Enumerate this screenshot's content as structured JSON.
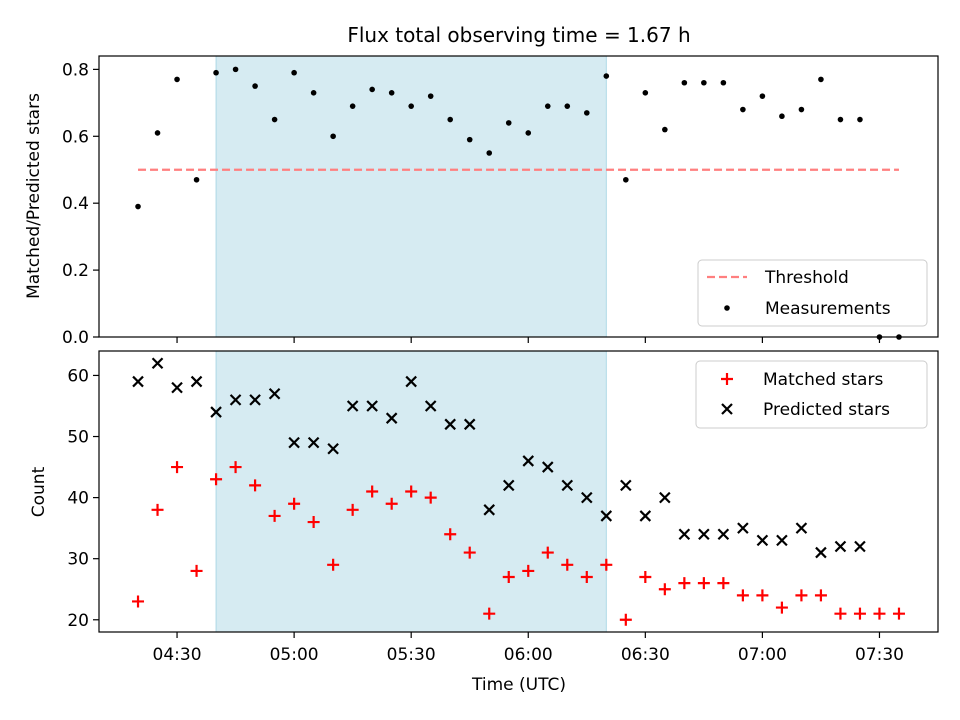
{
  "figure_title": "Flux total observing time = 1.67 h",
  "colors": {
    "threshold": "#ff7f7f",
    "measurement": "#000000",
    "matched": "#ff0000",
    "predicted": "#000000",
    "shade": "#add8e6"
  },
  "chart_data": [
    {
      "type": "scatter",
      "ylabel": "Matched/Predicted stars",
      "ylim": [
        0,
        0.84
      ],
      "yticks": [
        "0.0",
        "0.2",
        "0.4",
        "0.6",
        "0.8"
      ],
      "ytick_values": [
        0,
        0.2,
        0.4,
        0.6,
        0.8
      ],
      "shaded_span": [
        "04:40",
        "06:20"
      ],
      "legend_position": "lower-right",
      "threshold": {
        "name": "Threshold",
        "value": 0.5,
        "x_range": [
          "04:20",
          "07:35"
        ]
      },
      "series": [
        {
          "name": "Measurements",
          "marker": "dot",
          "x": [
            "04:20",
            "04:25",
            "04:30",
            "04:35",
            "04:40",
            "04:45",
            "04:50",
            "04:55",
            "05:00",
            "05:05",
            "05:10",
            "05:15",
            "05:20",
            "05:25",
            "05:30",
            "05:35",
            "05:40",
            "05:45",
            "05:50",
            "05:55",
            "06:00",
            "06:05",
            "06:10",
            "06:15",
            "06:20",
            "06:25",
            "06:30",
            "06:35",
            "06:40",
            "06:45",
            "06:50",
            "06:55",
            "07:00",
            "07:05",
            "07:10",
            "07:15",
            "07:20",
            "07:25",
            "07:30",
            "07:35"
          ],
          "y": [
            0.39,
            0.61,
            0.77,
            0.47,
            0.79,
            0.8,
            0.75,
            0.65,
            0.79,
            0.73,
            0.6,
            0.69,
            0.74,
            0.73,
            0.69,
            0.72,
            0.65,
            0.59,
            0.55,
            0.64,
            0.61,
            0.69,
            0.69,
            0.67,
            0.78,
            0.47,
            0.73,
            0.62,
            0.76,
            0.76,
            0.76,
            0.68,
            0.72,
            0.66,
            0.68,
            0.77,
            0.65,
            0.65,
            0.0,
            0.0
          ]
        }
      ]
    },
    {
      "type": "scatter",
      "ylabel": "Count",
      "xlabel": "Time (UTC)",
      "ylim": [
        18,
        64
      ],
      "yticks": [
        "20",
        "30",
        "40",
        "50",
        "60"
      ],
      "ytick_values": [
        20,
        30,
        40,
        50,
        60
      ],
      "xticks": [
        "04:30",
        "05:00",
        "05:30",
        "06:00",
        "06:30",
        "07:00",
        "07:30"
      ],
      "xlim": [
        "04:10",
        "07:45"
      ],
      "shaded_span": [
        "04:40",
        "06:20"
      ],
      "legend_position": "top-right",
      "series": [
        {
          "name": "Matched stars",
          "marker": "plus",
          "x": [
            "04:20",
            "04:25",
            "04:30",
            "04:35",
            "04:40",
            "04:45",
            "04:50",
            "04:55",
            "05:00",
            "05:05",
            "05:10",
            "05:15",
            "05:20",
            "05:25",
            "05:30",
            "05:35",
            "05:40",
            "05:45",
            "05:50",
            "05:55",
            "06:00",
            "06:05",
            "06:10",
            "06:15",
            "06:20",
            "06:25",
            "06:30",
            "06:35",
            "06:40",
            "06:45",
            "06:50",
            "06:55",
            "07:00",
            "07:05",
            "07:10",
            "07:15",
            "07:20",
            "07:25",
            "07:30",
            "07:35"
          ],
          "y": [
            23,
            38,
            45,
            28,
            43,
            45,
            42,
            37,
            39,
            36,
            29,
            38,
            41,
            39,
            41,
            40,
            34,
            31,
            21,
            27,
            28,
            31,
            29,
            27,
            29,
            20,
            27,
            25,
            26,
            26,
            26,
            24,
            24,
            22,
            24,
            24,
            21,
            21,
            21,
            21
          ]
        },
        {
          "name": "Predicted stars",
          "marker": "x",
          "x": [
            "04:20",
            "04:25",
            "04:30",
            "04:35",
            "04:40",
            "04:45",
            "04:50",
            "04:55",
            "05:00",
            "05:05",
            "05:10",
            "05:15",
            "05:20",
            "05:25",
            "05:30",
            "05:35",
            "05:40",
            "05:45",
            "05:50",
            "05:55",
            "06:00",
            "06:05",
            "06:10",
            "06:15",
            "06:20",
            "06:25",
            "06:30",
            "06:35",
            "06:40",
            "06:45",
            "06:50",
            "06:55",
            "07:00",
            "07:05",
            "07:10",
            "07:15",
            "07:20",
            "07:25"
          ],
          "y": [
            59,
            62,
            58,
            59,
            54,
            56,
            56,
            57,
            49,
            49,
            48,
            55,
            55,
            53,
            59,
            55,
            52,
            52,
            38,
            42,
            46,
            45,
            42,
            40,
            37,
            42,
            37,
            40,
            34,
            34,
            34,
            35,
            33,
            33,
            35,
            31,
            32,
            32
          ]
        }
      ]
    }
  ]
}
